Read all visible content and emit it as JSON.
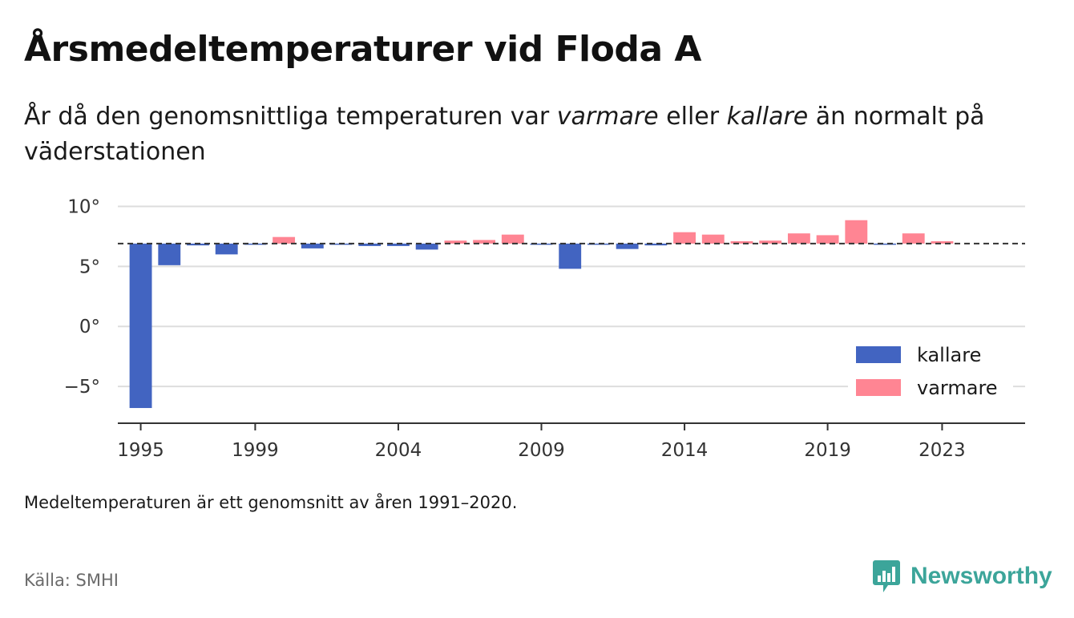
{
  "title": "Årsmedeltemperaturer vid Floda A",
  "subtitle": {
    "part1": "År då den genomsnittliga temperaturen var ",
    "warm": "varmare",
    "part2": " eller ",
    "cold": "kallare",
    "part3": " än normalt på väderstationen"
  },
  "footnote": "Medeltemperaturen är ett genomsnitt av åren 1991–2020.",
  "source": "Källa: SMHI",
  "brand": {
    "name": "Newsworthy",
    "color": "#3ca59a"
  },
  "chart_data": {
    "type": "bar",
    "baseline": 6.9,
    "ylim": [
      -8,
      10.5
    ],
    "yticks": [
      10,
      5,
      0,
      -5
    ],
    "ytick_labels": [
      "10°",
      "5°",
      "0°",
      "−5°"
    ],
    "xlim": [
      1994.2,
      2025.9
    ],
    "xticks": [
      1995,
      1999,
      2004,
      2009,
      2014,
      2019,
      2023
    ],
    "xtick_labels": [
      "1995",
      "1999",
      "2004",
      "2009",
      "2014",
      "2019",
      "2023"
    ],
    "grid": true,
    "legend": {
      "placement": "bottom-right",
      "items": [
        {
          "label": "kallare",
          "color": "#4264c1"
        },
        {
          "label": "varmare",
          "color": "#ff8593"
        }
      ]
    },
    "colors": {
      "colder": "#4264c1",
      "warmer": "#ff8593",
      "baseline": "#333333",
      "grid": "#dddddd",
      "axis": "#333333"
    },
    "years": [
      1995,
      1996,
      1997,
      1998,
      1999,
      2000,
      2001,
      2002,
      2003,
      2004,
      2005,
      2006,
      2007,
      2008,
      2009,
      2010,
      2011,
      2012,
      2013,
      2014,
      2015,
      2016,
      2017,
      2018,
      2019,
      2020,
      2021,
      2022,
      2023
    ],
    "values": [
      -6.8,
      5.1,
      6.75,
      6.0,
      6.85,
      7.45,
      6.5,
      6.85,
      6.7,
      6.7,
      6.4,
      7.15,
      7.2,
      7.65,
      6.8,
      4.8,
      6.85,
      6.45,
      6.75,
      7.85,
      7.65,
      7.1,
      7.15,
      7.75,
      7.6,
      8.85,
      6.85,
      7.75,
      7.1
    ]
  }
}
